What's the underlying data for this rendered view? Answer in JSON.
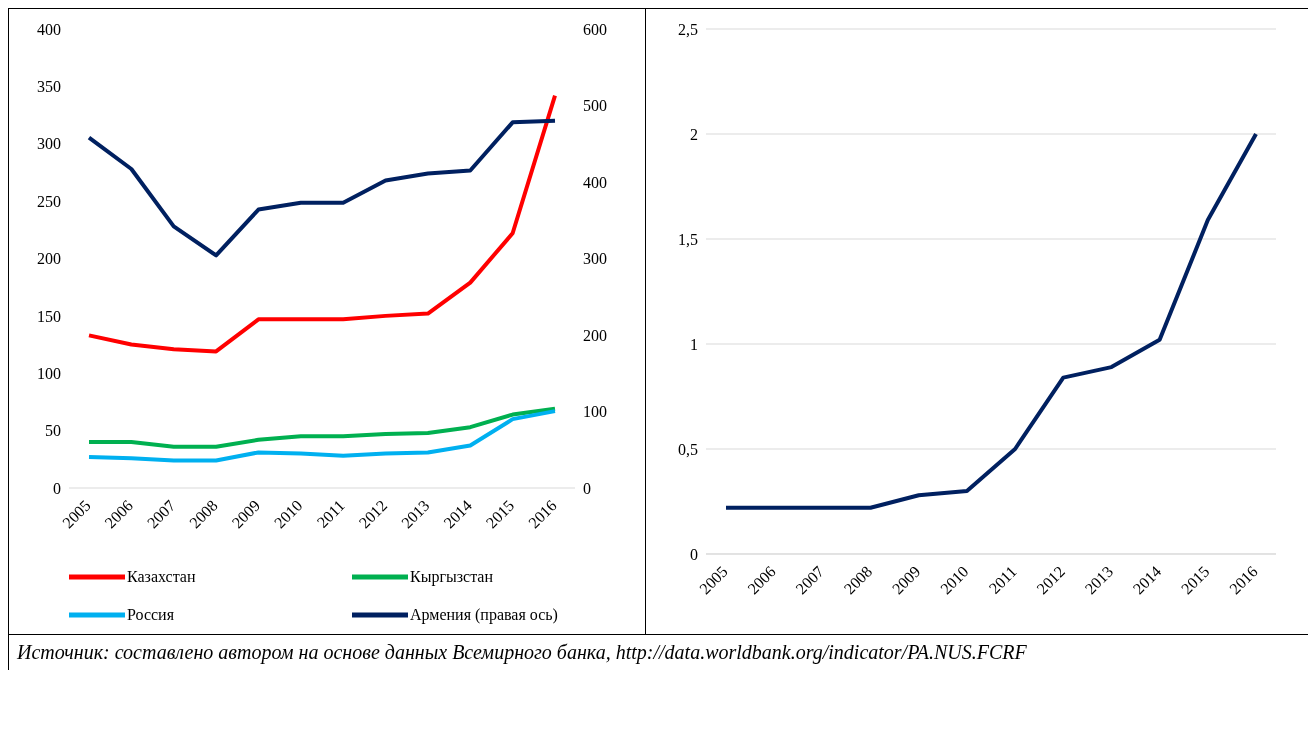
{
  "chart_data": [
    {
      "type": "line",
      "categories": [
        "2005",
        "2006",
        "2007",
        "2008",
        "2009",
        "2010",
        "2011",
        "2012",
        "2013",
        "2014",
        "2015",
        "2016"
      ],
      "series": [
        {
          "name": "Казахстан",
          "color": "#ff0000",
          "values": [
            133,
            125,
            121,
            119,
            147,
            147,
            147,
            150,
            152,
            179,
            222,
            342
          ]
        },
        {
          "name": "Кыргызстан",
          "color": "#00b050",
          "values": [
            40,
            40,
            36,
            36,
            42,
            45,
            45,
            47,
            48,
            53,
            64,
            69
          ]
        },
        {
          "name": "Россия",
          "color": "#00b0f0",
          "values": [
            27,
            26,
            24,
            24,
            31,
            30,
            28,
            30,
            31,
            37,
            60,
            67
          ]
        },
        {
          "name": "Армения (правая ось)",
          "color": "#002060",
          "axis": "y2",
          "values": [
            458,
            417,
            342,
            304,
            364,
            373,
            373,
            402,
            411,
            415,
            478,
            480
          ]
        }
      ],
      "ylim": [
        0,
        400
      ],
      "yticks": [
        0,
        50,
        100,
        150,
        200,
        250,
        300,
        350,
        400
      ],
      "y2lim": [
        0,
        600
      ],
      "y2ticks": [
        0,
        100,
        200,
        300,
        400,
        500,
        600
      ],
      "legend": "bottom",
      "marker": "none",
      "annotations": [
        "Источник: составлено автором на основе данных Всемирного банка, http://data.worldbank.org/indicator/PA.NUS.FCRF"
      ]
    },
    {
      "type": "line",
      "categories": [
        "2005",
        "2006",
        "2007",
        "2008",
        "2009",
        "2010",
        "2011",
        "2012",
        "2013",
        "2014",
        "2015",
        "2016"
      ],
      "series": [
        {
          "color": "#002060",
          "values": [
            0.22,
            0.22,
            0.22,
            0.22,
            0.28,
            0.3,
            0.5,
            0.84,
            0.89,
            1.02,
            1.59,
            2.0
          ]
        }
      ],
      "ylim": [
        0,
        2.5
      ],
      "yticks": [
        0,
        {
          "value": 0.5,
          "label": "0,5"
        },
        1,
        {
          "value": 1.5,
          "label": "1,5"
        },
        2,
        {
          "value": 2.5,
          "label": "2,5"
        }
      ],
      "grid": "y",
      "marker": "none"
    }
  ]
}
